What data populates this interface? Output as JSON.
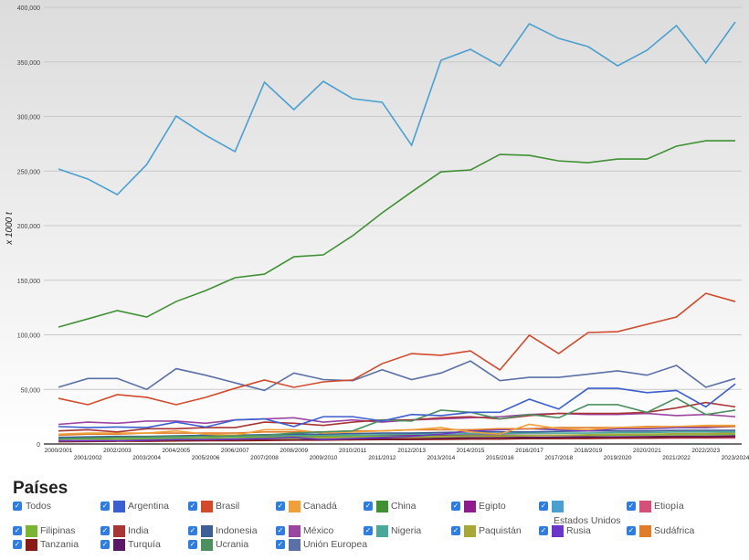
{
  "chart_data": {
    "type": "line",
    "ylabel": "x 1000 t",
    "ylim": [
      0,
      400000
    ],
    "yticks": [
      "0",
      "50,000",
      "100,000",
      "150,000",
      "200,000",
      "250,000",
      "300,000",
      "350,000",
      "400,000"
    ],
    "grid": true,
    "categories": [
      "2000/2001",
      "2001/2002",
      "2002/2003",
      "2003/2004",
      "2004/2005",
      "2005/2006",
      "2006/2007",
      "2007/2008",
      "2008/2009",
      "2009/2010",
      "2010/2011",
      "2011/2012",
      "2012/2013",
      "2013/2014",
      "2014/2015",
      "2015/2016",
      "2016/2017",
      "2017/2018",
      "2018/2019",
      "2019/2020",
      "2020/2021",
      "2021/2022",
      "2022/2023",
      "2023/2024"
    ],
    "series": [
      {
        "name": "Argentina",
        "color": "#3c5fcf",
        "values": [
          16000,
          15000,
          15500,
          15000,
          20000,
          15500,
          22000,
          23000,
          16000,
          25000,
          25000,
          21000,
          27000,
          26000,
          29000,
          29000,
          41000,
          32000,
          51000,
          51000,
          47000,
          49000,
          34000,
          55000
        ]
      },
      {
        "name": "Brasil",
        "color": "#d24a2c",
        "values": [
          41800,
          36000,
          45200,
          42700,
          36000,
          42700,
          51000,
          58600,
          51900,
          56900,
          58600,
          73600,
          82800,
          81200,
          85300,
          67800,
          99600,
          82800,
          102100,
          102900,
          109600,
          116300,
          138000,
          130500
        ]
      },
      {
        "name": "Canadá",
        "color": "#f0a03a",
        "values": [
          9000,
          10000,
          10000,
          10000,
          12000,
          9000,
          8000,
          13000,
          13000,
          10000,
          11000,
          12000,
          13000,
          15000,
          11000,
          9000,
          18000,
          14000,
          13000,
          15000,
          15000,
          16000,
          17000,
          17000
        ]
      },
      {
        "name": "China",
        "color": "#3f9133",
        "values": [
          107100,
          114600,
          122200,
          116300,
          130500,
          140500,
          152300,
          155600,
          171500,
          173200,
          190800,
          211700,
          230900,
          249300,
          251000,
          265200,
          264400,
          259300,
          257700,
          261000,
          261000,
          272800,
          277800,
          277800
        ]
      },
      {
        "name": "Egipto",
        "color": "#8e1a8e",
        "values": [
          6000,
          6000,
          6500,
          6500,
          6500,
          7000,
          7000,
          7000,
          7500,
          7500,
          7500,
          7500,
          8000,
          8000,
          8000,
          8000,
          8000,
          8000,
          8000,
          8500,
          8500,
          8500,
          8500,
          8500
        ]
      },
      {
        "name": "Estados Unidos",
        "color": "#4aa0d0",
        "values": [
          251900,
          242700,
          228400,
          256000,
          300400,
          282800,
          267800,
          331400,
          306300,
          332200,
          316300,
          313000,
          273600,
          351500,
          361500,
          346400,
          384900,
          371500,
          364000,
          346400,
          360700,
          383300,
          349000,
          386600
        ]
      },
      {
        "name": "Etiopía",
        "color": "#d4507a",
        "values": [
          2500,
          2800,
          3000,
          3000,
          3200,
          3500,
          3500,
          3800,
          4000,
          4000,
          4200,
          4300,
          4500,
          4500,
          4700,
          4800,
          5000,
          5000,
          5000,
          5200,
          5300,
          5400,
          5500,
          5500
        ]
      },
      {
        "name": "Filipinas",
        "color": "#7ab634",
        "values": [
          4500,
          4700,
          5000,
          5000,
          5200,
          5500,
          6000,
          6000,
          6500,
          6500,
          6800,
          7000,
          7000,
          7200,
          7500,
          7500,
          7800,
          8000,
          8000,
          8200,
          8300,
          8500,
          8500,
          8800
        ]
      },
      {
        "name": "India",
        "color": "#a83434",
        "values": [
          12000,
          13000,
          11000,
          14000,
          14000,
          15000,
          15000,
          20000,
          19000,
          17000,
          20000,
          22000,
          22000,
          24000,
          25000,
          23000,
          26000,
          28000,
          28000,
          28000,
          29000,
          33000,
          38000,
          34000
        ]
      },
      {
        "name": "Indonesia",
        "color": "#3e5e96",
        "values": [
          6000,
          6500,
          7000,
          7000,
          7500,
          8000,
          8000,
          8500,
          9000,
          9000,
          9500,
          10000,
          10000,
          10500,
          11000,
          11000,
          11000,
          11500,
          12000,
          12000,
          12000,
          12500,
          12500,
          12500
        ]
      },
      {
        "name": "México",
        "color": "#9b44a0",
        "values": [
          18000,
          20000,
          19000,
          21000,
          21000,
          19000,
          22000,
          23000,
          24000,
          20000,
          22000,
          20000,
          22000,
          23000,
          24000,
          25000,
          27000,
          28000,
          27000,
          27000,
          28000,
          26000,
          27000,
          25000
        ]
      },
      {
        "name": "Nigeria",
        "color": "#4aa89a",
        "values": [
          5000,
          5500,
          6000,
          6000,
          6500,
          7000,
          7000,
          7500,
          8000,
          8000,
          8000,
          8500,
          9000,
          9000,
          9500,
          9500,
          10000,
          10000,
          10000,
          10500,
          10500,
          11000,
          11000,
          11000
        ]
      },
      {
        "name": "Paquistán",
        "color": "#a8a838",
        "values": [
          3000,
          3200,
          3500,
          3800,
          4000,
          4200,
          4500,
          5000,
          5000,
          5500,
          5800,
          6000,
          6000,
          6500,
          7000,
          7000,
          7500,
          8000,
          8500,
          9000,
          9000,
          9500,
          9500,
          10000
        ]
      },
      {
        "name": "Rusia",
        "color": "#6a35c8",
        "values": [
          3000,
          3000,
          3000,
          3500,
          4000,
          4000,
          4500,
          5000,
          6000,
          4000,
          5000,
          6000,
          7000,
          9000,
          12000,
          13000,
          14000,
          13000,
          12000,
          14000,
          14000,
          15000,
          15000,
          16000
        ]
      },
      {
        "name": "Sudáfrica",
        "color": "#e07c2a",
        "values": [
          8000,
          9000,
          9000,
          10000,
          10000,
          10000,
          10000,
          11000,
          11000,
          11000,
          12000,
          12000,
          13000,
          13000,
          13000,
          14000,
          14000,
          15000,
          15000,
          15000,
          16000,
          16000,
          16000,
          16000
        ]
      },
      {
        "name": "Tanzania",
        "color": "#8a1a14",
        "values": [
          2000,
          2200,
          2500,
          2500,
          2800,
          3000,
          3000,
          3200,
          3500,
          3500,
          3800,
          4000,
          4000,
          4200,
          4500,
          4500,
          5000,
          5000,
          5200,
          5500,
          5500,
          6000,
          6000,
          6500
        ]
      },
      {
        "name": "Turquía",
        "color": "#5a1a66",
        "values": [
          3000,
          3200,
          3500,
          3500,
          4000,
          4000,
          4200,
          4500,
          4500,
          4800,
          5000,
          5000,
          5500,
          5500,
          5800,
          6000,
          6000,
          6200,
          6500,
          6500,
          6800,
          7000,
          7000,
          7200
        ]
      },
      {
        "name": "Ucrania",
        "color": "#4c9060",
        "values": [
          5000,
          5500,
          6000,
          6500,
          7000,
          7000,
          7500,
          8000,
          10000,
          11000,
          12000,
          22000,
          21000,
          31000,
          29000,
          23000,
          27000,
          24000,
          36000,
          36000,
          29000,
          42000,
          27000,
          31000
        ]
      },
      {
        "name": "Unión Europea",
        "color": "#5a70a6",
        "values": [
          52000,
          60000,
          60000,
          50000,
          69000,
          63000,
          56000,
          49000,
          65000,
          59000,
          58000,
          68000,
          59000,
          65000,
          76000,
          58000,
          61000,
          61000,
          64000,
          67000,
          63000,
          72000,
          52000,
          60000
        ]
      }
    ]
  },
  "legend": {
    "title": "Países",
    "all_label": "Todos",
    "items": [
      "Argentina",
      "Brasil",
      "Canadá",
      "China",
      "Egipto",
      "Estados Unidos",
      "Etiopía",
      "Filipinas",
      "India",
      "Indonesia",
      "México",
      "Nigeria",
      "Paquistán",
      "Rusia",
      "Sudáfrica",
      "Tanzania",
      "Turquía",
      "Ucrania",
      "Unión Europea"
    ]
  }
}
